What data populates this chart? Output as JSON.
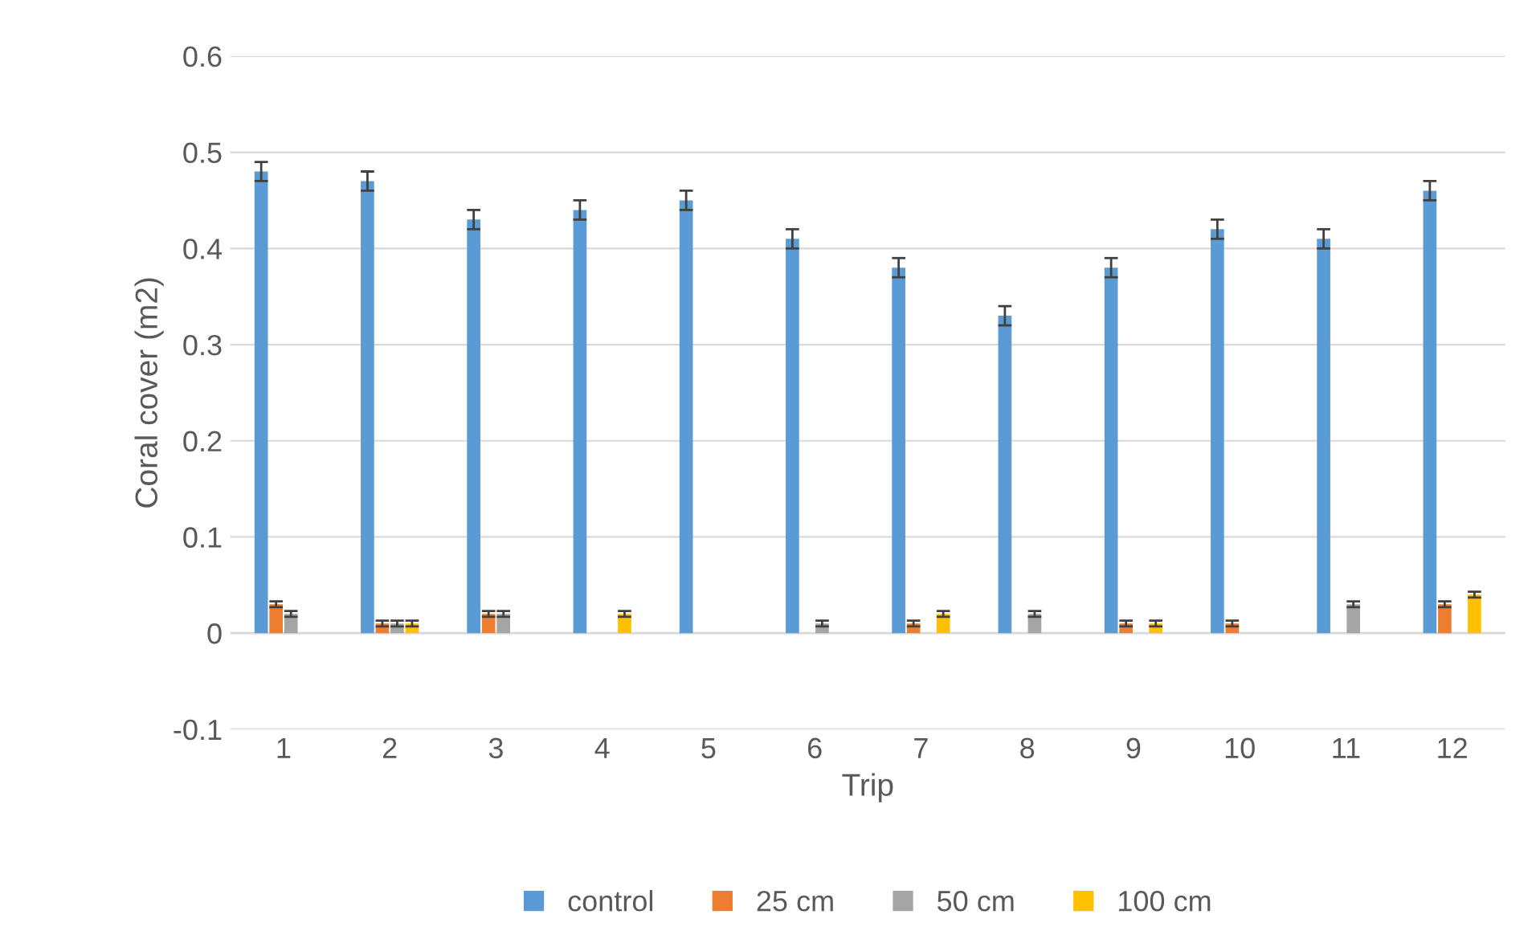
{
  "chart_data": {
    "type": "bar",
    "xlabel": "Trip",
    "ylabel": "Coral cover (m2)",
    "categories": [
      "1",
      "2",
      "3",
      "4",
      "5",
      "6",
      "7",
      "8",
      "9",
      "10",
      "11",
      "12"
    ],
    "series": [
      {
        "name": "control",
        "color": "#5b9bd5",
        "values": [
          0.48,
          0.47,
          0.43,
          0.44,
          0.45,
          0.41,
          0.38,
          0.33,
          0.38,
          0.42,
          0.41,
          0.46
        ],
        "errors": [
          0.01,
          0.01,
          0.01,
          0.01,
          0.01,
          0.01,
          0.01,
          0.01,
          0.01,
          0.01,
          0.01,
          0.01
        ]
      },
      {
        "name": "25 cm",
        "color": "#ed7d31",
        "values": [
          0.03,
          0.01,
          0.02,
          0,
          0,
          0,
          0.01,
          0,
          0.01,
          0.01,
          0,
          0.03
        ],
        "errors": [
          0.003,
          0.003,
          0.003,
          null,
          null,
          null,
          0.003,
          null,
          0.003,
          0.003,
          null,
          0.003
        ]
      },
      {
        "name": "50 cm",
        "color": "#a5a5a5",
        "values": [
          0.02,
          0.01,
          0.02,
          0,
          0,
          0.01,
          0,
          0.02,
          0,
          0,
          0.03,
          0
        ],
        "errors": [
          0.003,
          0.003,
          0.003,
          null,
          null,
          0.003,
          null,
          0.003,
          null,
          null,
          0.003,
          null
        ]
      },
      {
        "name": "100 cm",
        "color": "#ffc000",
        "values": [
          0,
          0.01,
          0,
          0.02,
          0,
          0,
          0.02,
          0,
          0.01,
          0,
          0,
          0.04
        ],
        "errors": [
          null,
          0.003,
          null,
          0.003,
          null,
          null,
          0.003,
          null,
          0.003,
          null,
          null,
          0.003
        ]
      }
    ],
    "ylim": [
      -0.1,
      0.6
    ],
    "yticks": [
      -0.1,
      0,
      0.1,
      0.2,
      0.3,
      0.4,
      0.5,
      0.6
    ],
    "grid": "y",
    "legend": "bottom"
  }
}
